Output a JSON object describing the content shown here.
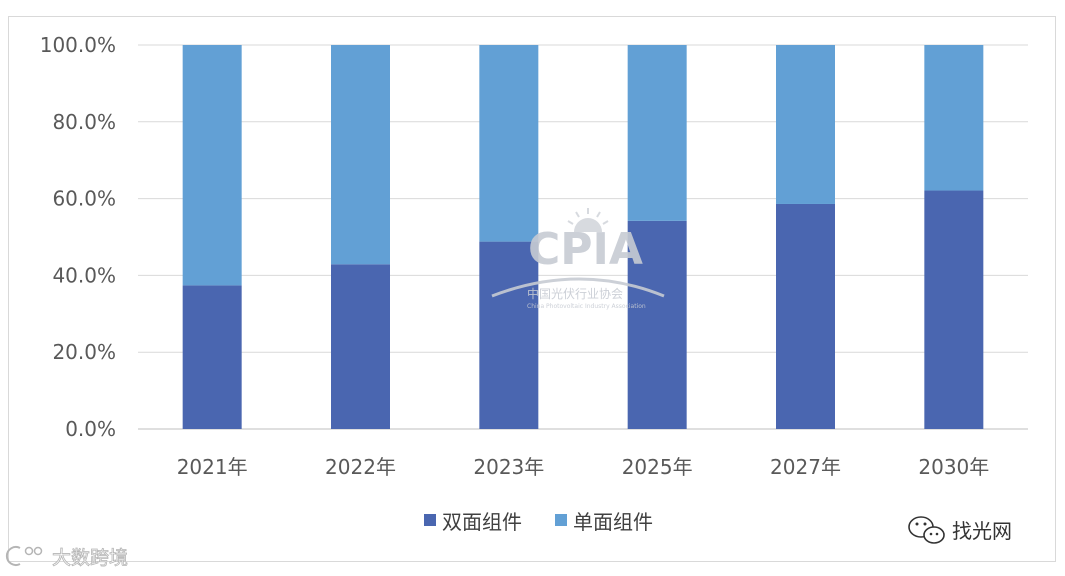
{
  "chart_data": {
    "type": "bar",
    "stacked": true,
    "categories": [
      "2021年",
      "2022年",
      "2023年",
      "2025年",
      "2027年",
      "2030年"
    ],
    "series": [
      {
        "name": "双面组件",
        "color": "#4a66b0",
        "values": [
          37.4,
          42.9,
          48.8,
          54.2,
          58.6,
          62.1
        ]
      },
      {
        "name": "单面组件",
        "color": "#62a0d5",
        "values": [
          62.6,
          57.1,
          51.2,
          45.8,
          41.4,
          37.9
        ]
      }
    ],
    "y_ticks": [
      "0.0%",
      "20.0%",
      "40.0%",
      "60.0%",
      "80.0%",
      "100.0%"
    ],
    "ylim": [
      0,
      100
    ],
    "grid": true,
    "legend_position": "bottom"
  },
  "watermarks": {
    "logo_text": "CPIA",
    "logo_subtitle": "中国光伏行业协会",
    "logo_english": "China Photovoltaic Industry Association",
    "bottom_right": "找光网",
    "bottom_left": "大数跨境"
  }
}
